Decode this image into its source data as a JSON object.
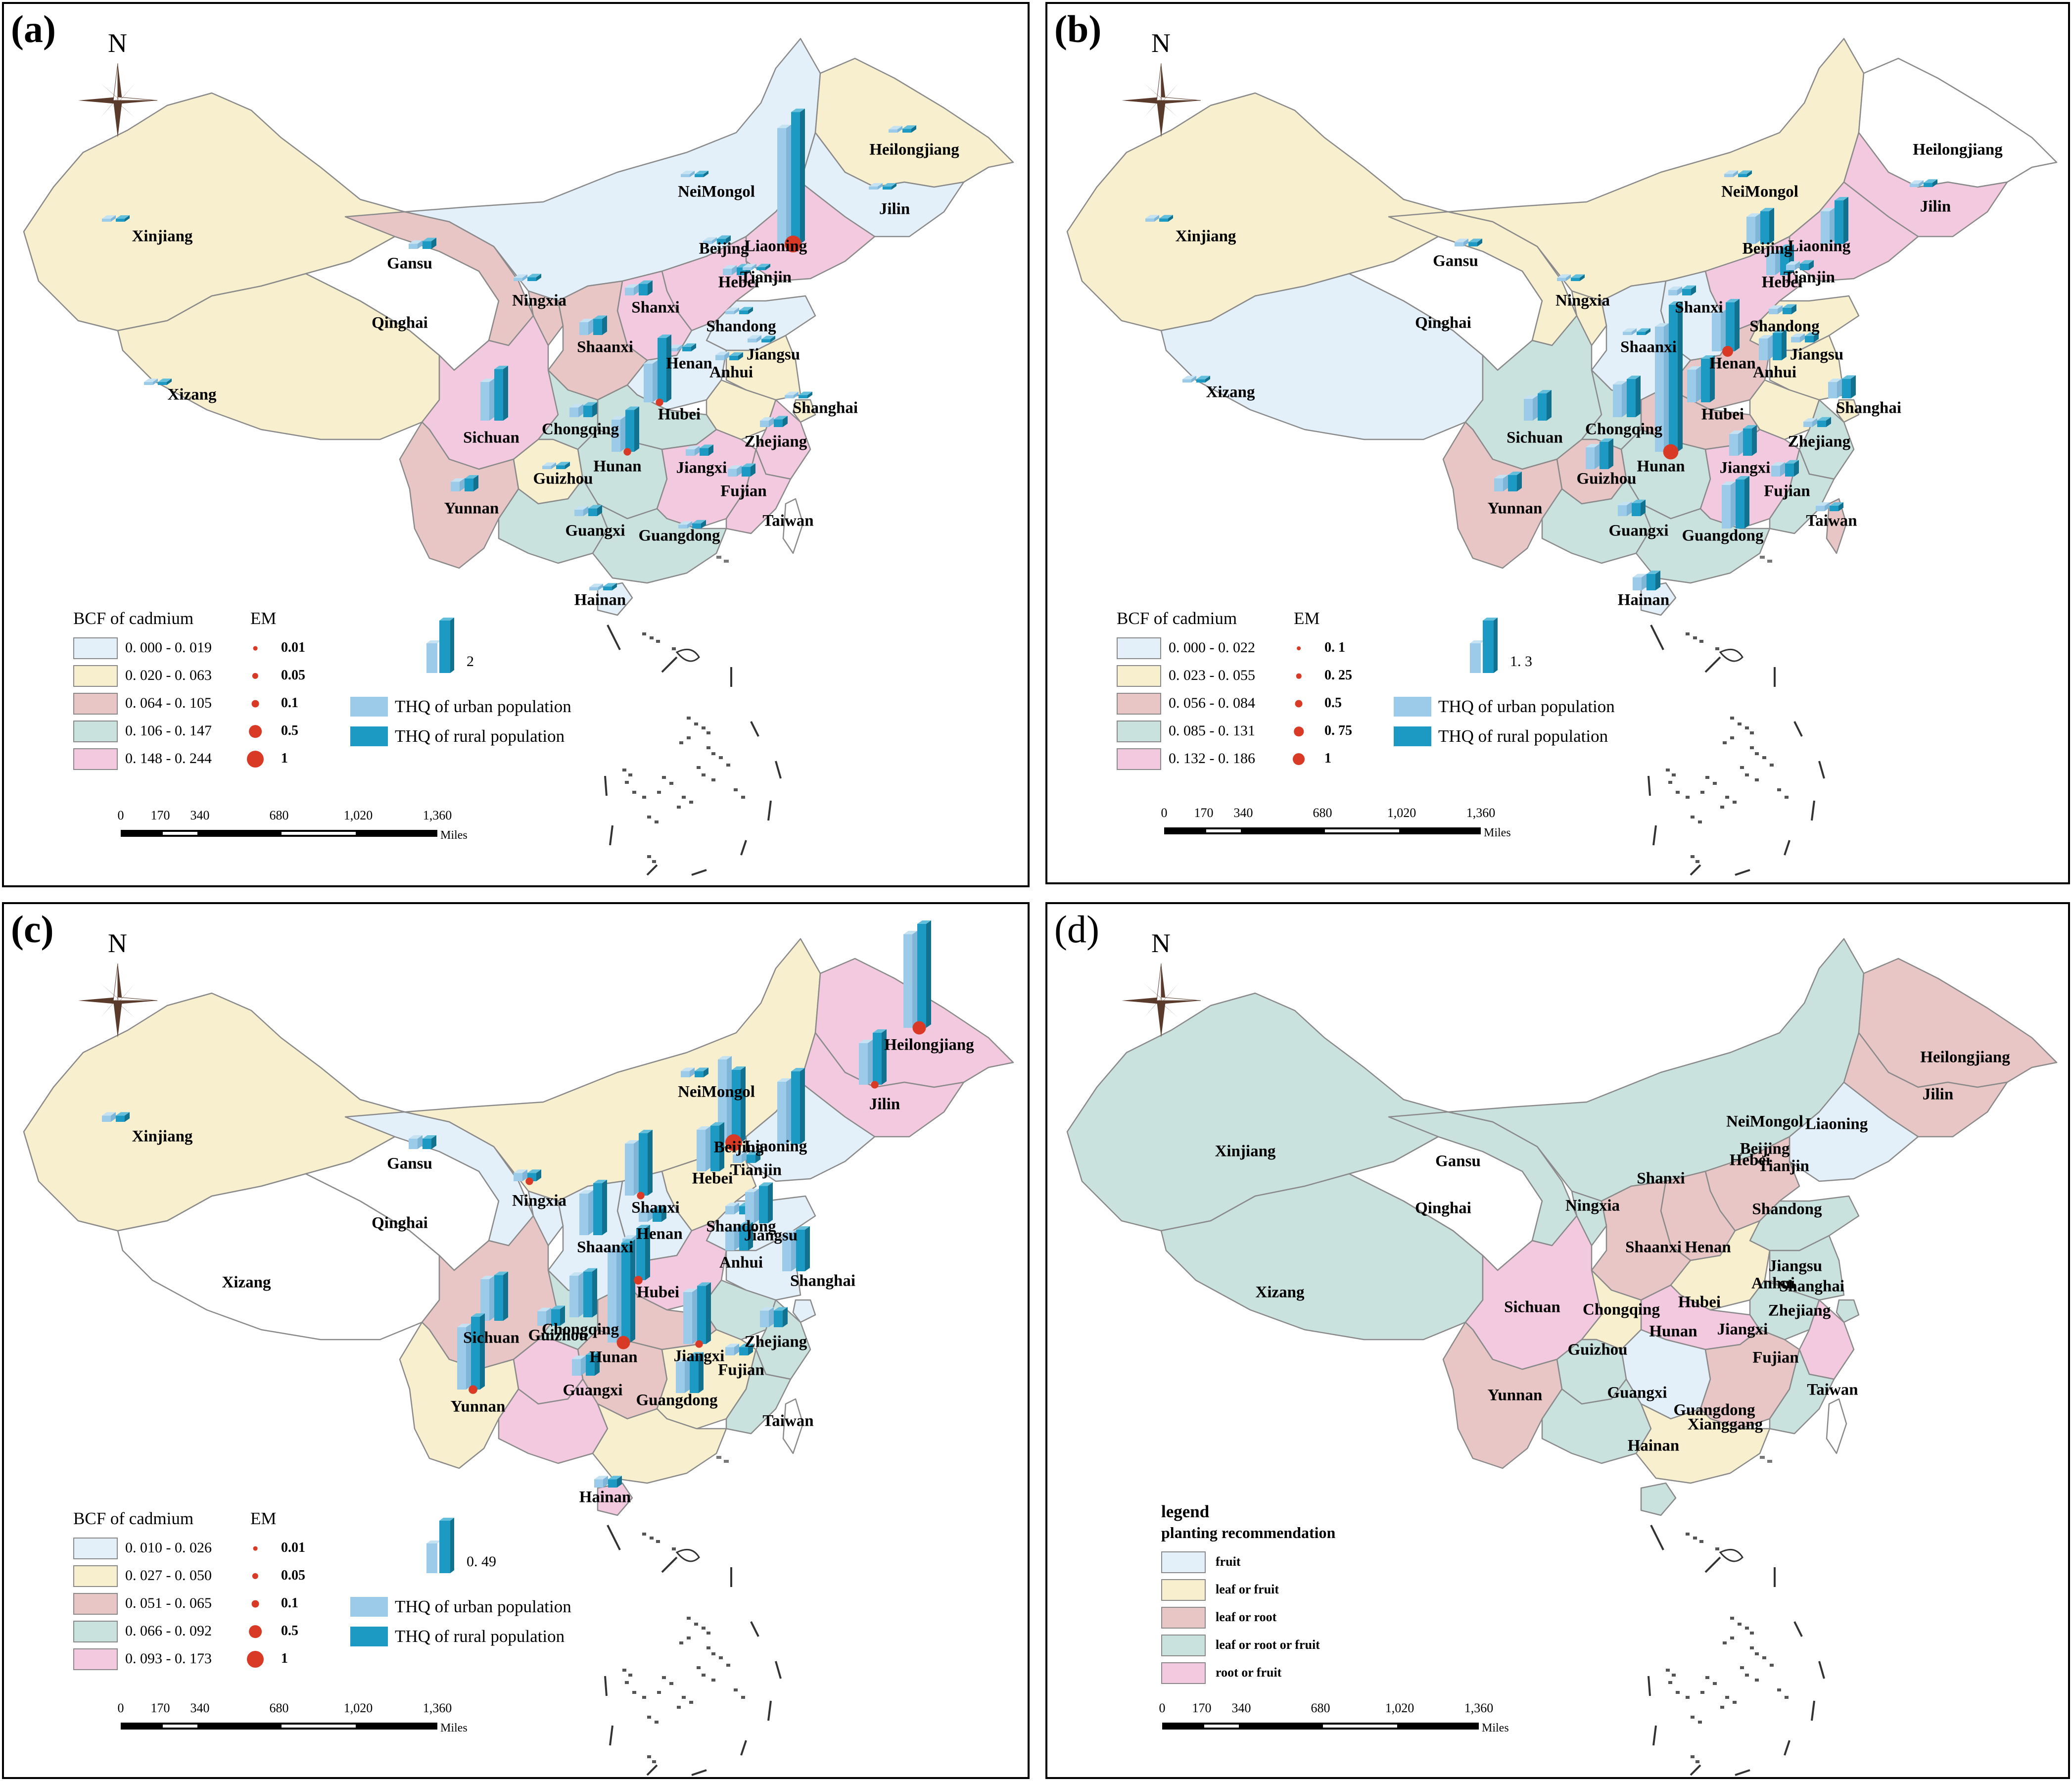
{
  "colors": {
    "light_blue": "#e4f0f9",
    "light_yellow": "#f8efce",
    "dusty_pink": "#e8c6c6",
    "teal_gray": "#cae2de",
    "pink": "#f3c9df",
    "white": "#ffffff",
    "urban_bar": "#9ccbe9",
    "rural_bar": "#1d9ac3",
    "em_dot": "#d93a25"
  },
  "icons": {
    "compass": "north-arrow-compass-rose-icon",
    "thq_bar": "3d-double-column-bar-icon",
    "em": "red-circle-icon"
  },
  "north_label": "N",
  "scalebar": {
    "ticks": [
      "0",
      "170",
      "340",
      "680",
      "1,020",
      "1,360"
    ],
    "unit": "Miles"
  },
  "panels": [
    {
      "label": "(a)",
      "fills": {
        "Xinjiang": "light_yellow",
        "Xizang": "light_yellow",
        "Qinghai": "white",
        "Gansu": "dusty_pink",
        "NeiMongol": "light_blue",
        "Heilongjiang": "light_yellow",
        "Jilin": "light_blue",
        "Liaoning": "pink",
        "Beijing": "light_yellow",
        "Tianjin": "light_yellow",
        "Hebei": "pink",
        "Shanxi": "pink",
        "Ningxia": "dusty_pink",
        "Shaanxi": "dusty_pink",
        "Henan": "light_blue",
        "Shandong": "light_blue",
        "Jiangsu": "light_yellow",
        "Anhui": "light_yellow",
        "Shanghai": "light_yellow",
        "Zhejiang": "pink",
        "Hubei": "teal_gray",
        "Sichuan": "pink",
        "Chongqing": "teal_gray",
        "Guizhou": "light_yellow",
        "Yunnan": "dusty_pink",
        "Hunan": "teal_gray",
        "Jiangxi": "pink",
        "Fujian": "pink",
        "Guangxi": "teal_gray",
        "Guangdong": "teal_gray",
        "Hainan": "light_blue",
        "Taiwan": "white"
      },
      "provinces": [
        "Heilongjiang",
        "Jilin",
        "NeiMongol",
        "Liaoning",
        "Xinjiang",
        "Beijing",
        "Gansu",
        "Hebei",
        "Tianjin",
        "Ningxia",
        "Shanxi",
        "Qinghai",
        "Shandong",
        "Shaanxi",
        "Henan",
        "Jiangsu",
        "Xizang",
        "Anhui",
        "Hubei",
        "Shanghai",
        "Sichuan",
        "Chongqing",
        "Zhejiang",
        "Hunan",
        "Jiangxi",
        "Guizhou",
        "Fujian",
        "Yunnan",
        "Taiwan",
        "Guangxi",
        "Guangdong",
        "Hainan"
      ],
      "legend_title": "BCF of cadmium",
      "classes": [
        {
          "range": "0. 000 - 0. 019",
          "color": "light_blue"
        },
        {
          "range": "0. 020 - 0. 063",
          "color": "light_yellow"
        },
        {
          "range": "0. 064 - 0. 105",
          "color": "dusty_pink"
        },
        {
          "range": "0. 106 - 0. 147",
          "color": "teal_gray"
        },
        {
          "range": "0. 148 - 0. 244",
          "color": "pink"
        }
      ],
      "em_title": "EM",
      "em_values": [
        "0.01",
        "0.05",
        "0.1",
        "0.5",
        "1"
      ],
      "thq_ref": "2",
      "thq_urban": "THQ of urban population",
      "thq_rural": "THQ of rural population"
    },
    {
      "label": "(b)",
      "fills": {
        "Xinjiang": "light_yellow",
        "Xizang": "light_blue",
        "Qinghai": "white",
        "Gansu": "light_yellow",
        "NeiMongol": "light_yellow",
        "Heilongjiang": "white",
        "Jilin": "pink",
        "Liaoning": "pink",
        "Beijing": "pink",
        "Tianjin": "light_yellow",
        "Hebei": "pink",
        "Shanxi": "light_blue",
        "Ningxia": "light_yellow",
        "Shaanxi": "light_blue",
        "Henan": "dusty_pink",
        "Shandong": "light_yellow",
        "Jiangsu": "light_yellow",
        "Anhui": "light_yellow",
        "Shanghai": "light_yellow",
        "Zhejiang": "teal_gray",
        "Hubei": "dusty_pink",
        "Sichuan": "teal_gray",
        "Chongqing": "teal_gray",
        "Guizhou": "dusty_pink",
        "Yunnan": "dusty_pink",
        "Hunan": "teal_gray",
        "Jiangxi": "pink",
        "Fujian": "teal_gray",
        "Guangxi": "teal_gray",
        "Guangdong": "teal_gray",
        "Hainan": "light_blue",
        "Taiwan": "dusty_pink"
      },
      "provinces": [
        "Heilongjiang",
        "Jilin",
        "NeiMongol",
        "Liaoning",
        "Xinjiang",
        "Beijing",
        "Gansu",
        "Hebei",
        "Tianjin",
        "Ningxia",
        "Shanxi",
        "Qinghai",
        "Shandong",
        "Shaanxi",
        "Henan",
        "Jiangsu",
        "Xizang",
        "Anhui",
        "Hubei",
        "Shanghai",
        "Sichuan",
        "Chongqing",
        "Zhejiang",
        "Hunan",
        "Jiangxi",
        "Guizhou",
        "Fujian",
        "Yunnan",
        "Taiwan",
        "Guangxi",
        "Guangdong",
        "Hainan"
      ],
      "legend_title": "BCF of cadmium",
      "classes": [
        {
          "range": "0. 000 - 0. 022",
          "color": "light_blue"
        },
        {
          "range": "0. 023 - 0. 055",
          "color": "light_yellow"
        },
        {
          "range": "0. 056 - 0. 084",
          "color": "dusty_pink"
        },
        {
          "range": "0. 085 - 0. 131",
          "color": "teal_gray"
        },
        {
          "range": "0. 132 - 0. 186",
          "color": "pink"
        }
      ],
      "em_title": "EM",
      "em_values": [
        "0. 1",
        "0. 25",
        "0.5",
        "0. 75",
        "1"
      ],
      "thq_ref": "1. 3",
      "thq_urban": "THQ of urban population",
      "thq_rural": "THQ of rural population"
    },
    {
      "label": "(c)",
      "fills": {
        "Xinjiang": "light_yellow",
        "Xizang": "white",
        "Qinghai": "white",
        "Gansu": "light_blue",
        "NeiMongol": "light_yellow",
        "Heilongjiang": "pink",
        "Jilin": "pink",
        "Liaoning": "light_blue",
        "Beijing": "light_blue",
        "Tianjin": "light_yellow",
        "Hebei": "light_yellow",
        "Shanxi": "light_blue",
        "Ningxia": "light_blue",
        "Shaanxi": "light_blue",
        "Henan": "pink",
        "Shandong": "light_blue",
        "Jiangsu": "light_blue",
        "Anhui": "teal_gray",
        "Shanghai": "light_blue",
        "Zhejiang": "teal_gray",
        "Hubei": "dusty_pink",
        "Sichuan": "dusty_pink",
        "Chongqing": "teal_gray",
        "Guizhou": "pink",
        "Yunnan": "light_yellow",
        "Hunan": "dusty_pink",
        "Jiangxi": "light_yellow",
        "Fujian": "teal_gray",
        "Guangxi": "pink",
        "Guangdong": "light_yellow",
        "Hainan": "pink",
        "Taiwan": "white"
      },
      "provinces": [
        "Heilongjiang",
        "Jilin",
        "NeiMongol",
        "Liaoning",
        "Xinjiang",
        "Beijing",
        "Gansu",
        "Hebei",
        "Tianjin",
        "Ningxia",
        "Shanxi",
        "Qinghai",
        "Shandong",
        "Shaanxi",
        "Henan",
        "Jiangsu",
        "Xizang",
        "Anhui",
        "Hubei",
        "Shanghai",
        "Sichuan",
        "Chongqing",
        "Zhejiang",
        "Hunan",
        "Jiangxi",
        "Guizhou",
        "Fujian",
        "Yunnan",
        "Taiwan",
        "Guangxi",
        "Guangdong",
        "Hainan"
      ],
      "legend_title": "BCF of cadmium",
      "classes": [
        {
          "range": "0. 010 - 0. 026",
          "color": "light_blue"
        },
        {
          "range": "0. 027 - 0. 050",
          "color": "light_yellow"
        },
        {
          "range": "0. 051 - 0. 065",
          "color": "dusty_pink"
        },
        {
          "range": "0. 066 - 0. 092",
          "color": "teal_gray"
        },
        {
          "range": "0. 093 - 0. 173",
          "color": "pink"
        }
      ],
      "em_title": "EM",
      "em_values": [
        "0.01",
        "0.05",
        "0.1",
        "0.5",
        "1"
      ],
      "thq_ref": "0. 49",
      "thq_urban": "THQ of urban population",
      "thq_rural": "THQ of rural population"
    },
    {
      "label": "(d)",
      "fills": {
        "Xinjiang": "teal_gray",
        "Xizang": "teal_gray",
        "Qinghai": "white",
        "Gansu": "teal_gray",
        "NeiMongol": "teal_gray",
        "Heilongjiang": "dusty_pink",
        "Jilin": "dusty_pink",
        "Liaoning": "light_blue",
        "Beijing": "dusty_pink",
        "Tianjin": "pink",
        "Hebei": "dusty_pink",
        "Shanxi": "dusty_pink",
        "Ningxia": "teal_gray",
        "Shaanxi": "dusty_pink",
        "Henan": "light_yellow",
        "Shandong": "teal_gray",
        "Jiangsu": "teal_gray",
        "Anhui": "teal_gray",
        "Shanghai": "teal_gray",
        "Zhejiang": "pink",
        "Hubei": "pink",
        "Sichuan": "pink",
        "Chongqing": "light_yellow",
        "Guizhou": "teal_gray",
        "Yunnan": "dusty_pink",
        "Hunan": "light_blue",
        "Jiangxi": "dusty_pink",
        "Fujian": "teal_gray",
        "Guangxi": "teal_gray",
        "Guangdong": "light_yellow",
        "Hainan": "teal_gray",
        "Taiwan": "white"
      },
      "provinces": [
        "Heilongjiang",
        "Jilin",
        "NeiMongol",
        "Liaoning",
        "Xinjiang",
        "Beijing",
        "Gansu",
        "Hebei",
        "Tianjin",
        "Ningxia",
        "Shanxi",
        "Qinghai",
        "Shandong",
        "Shaanxi",
        "Henan",
        "Jiangsu",
        "Xizang",
        "Anhui",
        "Hubei",
        "Shanghai",
        "Sichuan",
        "Chongqing",
        "Zhejiang",
        "Hunan",
        "Jiangxi",
        "Guizhou",
        "Fujian",
        "Yunnan",
        "Taiwan",
        "Guangxi",
        "Guangdong",
        "Hainan",
        "Xianggang"
      ],
      "legend_title": "legend",
      "legend_subtitle": "planting recommendation",
      "classes": [
        {
          "range": "fruit",
          "color": "light_blue"
        },
        {
          "range": "leaf or fruit",
          "color": "light_yellow"
        },
        {
          "range": "leaf or root",
          "color": "dusty_pink"
        },
        {
          "range": "leaf or root or fruit",
          "color": "teal_gray"
        },
        {
          "range": "root or fruit",
          "color": "pink"
        }
      ]
    }
  ],
  "thq_bars": [
    {
      "Heilongjiang": [
        0.05,
        0.06
      ],
      "Jilin": [
        0.03,
        0.04
      ],
      "NeiMongol": [
        0.03,
        0.03
      ],
      "Liaoning": [
        1.8,
        2.05
      ],
      "Xinjiang": [
        0.04,
        0.04
      ],
      "Beijing": [
        0.05,
        0.08
      ],
      "Gansu": [
        0.08,
        0.12
      ],
      "Hebei": [
        0.1,
        0.12
      ],
      "Tianjin": [
        0.04,
        0.04
      ],
      "Ningxia": [
        0.05,
        0.06
      ],
      "Shanxi": [
        0.12,
        0.18
      ],
      "Shandong": [
        0.05,
        0.06
      ],
      "Shaanxi": [
        0.2,
        0.25
      ],
      "Henan": [
        0.05,
        0.07
      ],
      "Jiangsu": [
        0.06,
        0.05
      ],
      "Xizang": [
        0.03,
        0.03
      ],
      "Anhui": [
        0.08,
        0.07
      ],
      "Hubei": [
        0.6,
        1.0
      ],
      "Shanghai": [
        0.05,
        0.05
      ],
      "Sichuan": [
        0.6,
        0.8
      ],
      "Chongqing": [
        0.15,
        0.18
      ],
      "Zhejiang": [
        0.1,
        0.12
      ],
      "Hunan": [
        0.5,
        0.65
      ],
      "Jiangxi": [
        0.1,
        0.12
      ],
      "Guizhou": [
        0.05,
        0.06
      ],
      "Fujian": [
        0.12,
        0.15
      ],
      "Yunnan": [
        0.15,
        0.2
      ],
      "Guangxi": [
        0.1,
        0.12
      ],
      "Guangdong": [
        0.06,
        0.08
      ],
      "Hainan": [
        0.05,
        0.06
      ]
    },
    {
      "Heilongjiang": [
        0,
        0
      ],
      "Jilin": [
        0.03,
        0.04
      ],
      "NeiMongol": [
        0.03,
        0.03
      ],
      "Liaoning": [
        0.3,
        0.4
      ],
      "Xinjiang": [
        0.03,
        0.03
      ],
      "Beijing": [
        0.25,
        0.3
      ],
      "Gansu": [
        0.04,
        0.04
      ],
      "Hebei": [
        0.2,
        0.25
      ],
      "Tianjin": [
        0.05,
        0.06
      ],
      "Ningxia": [
        0.03,
        0.03
      ],
      "Shanxi": [
        0.05,
        0.06
      ],
      "Shandong": [
        0.05,
        0.06
      ],
      "Shaanxi": [
        0.03,
        0.03
      ],
      "Henan": [
        0.35,
        0.45
      ],
      "Jiangsu": [
        0.05,
        0.06
      ],
      "Xizang": [
        0.03,
        0.03
      ],
      "Anhui": [
        0.2,
        0.25
      ],
      "Hubei": [
        0.3,
        0.4
      ],
      "Shanghai": [
        0.15,
        0.18
      ],
      "Sichuan": [
        0.2,
        0.25
      ],
      "Chongqing": [
        0.3,
        0.35
      ],
      "Zhejiang": [
        0.05,
        0.06
      ],
      "Hunan": [
        1.15,
        1.35
      ],
      "Jiangxi": [
        0.2,
        0.25
      ],
      "Guizhou": [
        0.2,
        0.25
      ],
      "Fujian": [
        0.1,
        0.12
      ],
      "Yunnan": [
        0.12,
        0.15
      ],
      "Guangxi": [
        0.1,
        0.12
      ],
      "Guangdong": [
        0.4,
        0.45
      ],
      "Hainan": [
        0.12,
        0.15
      ],
      "Taiwan": [
        0.05,
        0.05
      ]
    },
    {
      "Heilongjiang": [
        0.45,
        0.5
      ],
      "Jilin": [
        0.2,
        0.25
      ],
      "NeiMongol": [
        0.03,
        0.03
      ],
      "Liaoning": [
        0.3,
        0.35
      ],
      "Xinjiang": [
        0.03,
        0.03
      ],
      "Beijing": [
        0.4,
        0.35
      ],
      "Gansu": [
        0.05,
        0.05
      ],
      "Hebei": [
        0.2,
        0.22
      ],
      "Tianjin": [
        0.04,
        0.04
      ],
      "Ningxia": [
        0.04,
        0.04
      ],
      "Shanxi": [
        0.25,
        0.3
      ],
      "Shandong": [
        0.04,
        0.04
      ],
      "Shaanxi": [
        0.2,
        0.25
      ],
      "Henan": [
        0.05,
        0.06
      ],
      "Jiangsu": [
        0.15,
        0.18
      ],
      "Xizang": [
        0,
        0
      ],
      "Anhui": [
        0.1,
        0.12
      ],
      "Hubei": [
        0.2,
        0.25
      ],
      "Shanghai": [
        0.18,
        0.2
      ],
      "Sichuan": [
        0.2,
        0.22
      ],
      "Chongqing": [
        0.2,
        0.22
      ],
      "Zhejiang": [
        0.08,
        0.08
      ],
      "Hunan": [
        0.45,
        0.48
      ],
      "Jiangxi": [
        0.25,
        0.28
      ],
      "Guizhou": [
        0.07,
        0.08
      ],
      "Fujian": [
        0.04,
        0.04
      ],
      "Yunnan": [
        0.3,
        0.35
      ],
      "Guangxi": [
        0.08,
        0.1
      ],
      "Guangdong": [
        0.15,
        0.18
      ],
      "Hainan": [
        0.04,
        0.04
      ]
    }
  ],
  "em_points": [
    {
      "Liaoning": 1.0,
      "Hubei": 0.05,
      "Hunan": 0.05
    },
    {
      "Henan": 0.25,
      "Hunan": 0.75
    },
    {
      "Heilongjiang": 0.5,
      "Jilin": 0.05,
      "Beijing": 1.0,
      "Ningxia": 0.05,
      "Shanxi": 0.05,
      "Hubei": 0.1,
      "Hunan": 0.5,
      "Jiangxi": 0.05,
      "Yunnan": 0.1
    }
  ]
}
